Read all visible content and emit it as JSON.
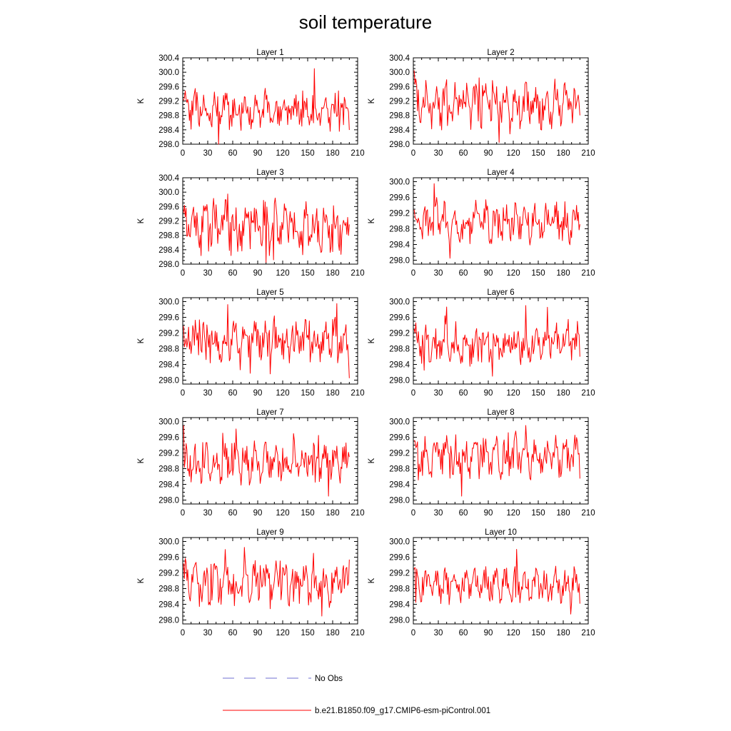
{
  "figure_title": "soil temperature",
  "colors": {
    "model": "#ff0000",
    "obs": "#6f6fd0",
    "axis": "#000000"
  },
  "legend": [
    {
      "label": "No Obs",
      "style": "dashed",
      "color": "#6f6fd0"
    },
    {
      "label": "b.e21.B1850.f09_g17.CMIP6-esm-piControl.001",
      "style": "solid",
      "color": "#ff0000"
    }
  ],
  "chart_data": [
    {
      "type": "line",
      "title": "Layer 1",
      "ylabel": "K",
      "xlim": [
        0,
        210
      ],
      "ylim": [
        298.0,
        300.4
      ],
      "xticks": [
        0,
        30,
        60,
        90,
        120,
        150,
        180,
        210
      ],
      "yticks": [
        298.0,
        298.4,
        298.8,
        299.2,
        299.6,
        300.0,
        300.4
      ],
      "ytick_labels": [
        "298.0",
        "298.4",
        "298.8",
        "299.2",
        "299.6",
        "300.0",
        "300.4"
      ],
      "series": [
        {
          "name": "b.e21.B1850.f09_g17.CMIP6-esm-piControl.001",
          "shape": "seasonal noisy series, x = 1..200",
          "ymin": 298.0,
          "ymax": 300.1,
          "seed": 11
        }
      ]
    },
    {
      "type": "line",
      "title": "Layer 2",
      "ylabel": "K",
      "xlim": [
        0,
        210
      ],
      "ylim": [
        298.0,
        300.4
      ],
      "xticks": [
        0,
        30,
        60,
        90,
        120,
        150,
        180,
        210
      ],
      "yticks": [
        298.0,
        298.4,
        298.8,
        299.2,
        299.6,
        300.0,
        300.4
      ],
      "ytick_labels": [
        "298.0",
        "298.4",
        "298.8",
        "299.2",
        "299.6",
        "300.0",
        "300.4"
      ],
      "series": [
        {
          "name": "b.e21.B1850.f09_g17.CMIP6-esm-piControl.001",
          "shape": "seasonal noisy series, x = 1..200",
          "ymin": 298.05,
          "ymax": 300.05,
          "seed": 12
        }
      ]
    },
    {
      "type": "line",
      "title": "Layer 3",
      "ylabel": "K",
      "xlim": [
        0,
        210
      ],
      "ylim": [
        298.0,
        300.4
      ],
      "xticks": [
        0,
        30,
        60,
        90,
        120,
        150,
        180,
        210
      ],
      "yticks": [
        298.0,
        298.4,
        298.8,
        299.2,
        299.6,
        300.0,
        300.4
      ],
      "ytick_labels": [
        "298.0",
        "298.4",
        "298.8",
        "299.2",
        "299.6",
        "300.0",
        "300.4"
      ],
      "series": [
        {
          "name": "b.e21.B1850.f09_g17.CMIP6-esm-piControl.001",
          "shape": "seasonal noisy series, x = 1..200",
          "ymin": 298.05,
          "ymax": 299.95,
          "seed": 13
        }
      ]
    },
    {
      "type": "line",
      "title": "Layer 4",
      "ylabel": "K",
      "xlim": [
        0,
        210
      ],
      "ylim": [
        297.9,
        300.1
      ],
      "xticks": [
        0,
        30,
        60,
        90,
        120,
        150,
        180,
        210
      ],
      "yticks": [
        298.0,
        298.4,
        298.8,
        299.2,
        299.6,
        300.0
      ],
      "ytick_labels": [
        "298.0",
        "298.4",
        "298.8",
        "299.2",
        "299.6",
        "300.0"
      ],
      "series": [
        {
          "name": "b.e21.B1850.f09_g17.CMIP6-esm-piControl.001",
          "shape": "seasonal noisy series, x = 1..200",
          "ymin": 298.05,
          "ymax": 299.95,
          "seed": 14
        }
      ]
    },
    {
      "type": "line",
      "title": "Layer 5",
      "ylabel": "K",
      "xlim": [
        0,
        210
      ],
      "ylim": [
        297.9,
        300.1
      ],
      "xticks": [
        0,
        30,
        60,
        90,
        120,
        150,
        180,
        210
      ],
      "yticks": [
        298.0,
        298.4,
        298.8,
        299.2,
        299.6,
        300.0
      ],
      "ytick_labels": [
        "298.0",
        "298.4",
        "298.8",
        "299.2",
        "299.6",
        "300.0"
      ],
      "series": [
        {
          "name": "b.e21.B1850.f09_g17.CMIP6-esm-piControl.001",
          "shape": "seasonal noisy series, x = 1..200",
          "ymin": 298.05,
          "ymax": 299.95,
          "seed": 15
        }
      ]
    },
    {
      "type": "line",
      "title": "Layer 6",
      "ylabel": "K",
      "xlim": [
        0,
        210
      ],
      "ylim": [
        297.9,
        300.1
      ],
      "xticks": [
        0,
        30,
        60,
        90,
        120,
        150,
        180,
        210
      ],
      "yticks": [
        298.0,
        298.4,
        298.8,
        299.2,
        299.6,
        300.0
      ],
      "ytick_labels": [
        "298.0",
        "298.4",
        "298.8",
        "299.2",
        "299.6",
        "300.0"
      ],
      "series": [
        {
          "name": "b.e21.B1850.f09_g17.CMIP6-esm-piControl.001",
          "shape": "seasonal noisy series, x = 1..200",
          "ymin": 298.1,
          "ymax": 299.9,
          "seed": 16
        }
      ]
    },
    {
      "type": "line",
      "title": "Layer 7",
      "ylabel": "K",
      "xlim": [
        0,
        210
      ],
      "ylim": [
        297.9,
        300.1
      ],
      "xticks": [
        0,
        30,
        60,
        90,
        120,
        150,
        180,
        210
      ],
      "yticks": [
        298.0,
        298.4,
        298.8,
        299.2,
        299.6,
        300.0
      ],
      "ytick_labels": [
        "298.0",
        "298.4",
        "298.8",
        "299.2",
        "299.6",
        "300.0"
      ],
      "series": [
        {
          "name": "b.e21.B1850.f09_g17.CMIP6-esm-piControl.001",
          "shape": "seasonal noisy series, x = 1..200",
          "ymin": 298.1,
          "ymax": 299.9,
          "seed": 17
        }
      ]
    },
    {
      "type": "line",
      "title": "Layer 8",
      "ylabel": "K",
      "xlim": [
        0,
        210
      ],
      "ylim": [
        297.9,
        300.1
      ],
      "xticks": [
        0,
        30,
        60,
        90,
        120,
        150,
        180,
        210
      ],
      "yticks": [
        298.0,
        298.4,
        298.8,
        299.2,
        299.6,
        300.0
      ],
      "ytick_labels": [
        "298.0",
        "298.4",
        "298.8",
        "299.2",
        "299.6",
        "300.0"
      ],
      "series": [
        {
          "name": "b.e21.B1850.f09_g17.CMIP6-esm-piControl.001",
          "shape": "seasonal noisy series, x = 1..200",
          "ymin": 298.1,
          "ymax": 299.9,
          "seed": 18
        }
      ]
    },
    {
      "type": "line",
      "title": "Layer 9",
      "ylabel": "K",
      "xlim": [
        0,
        210
      ],
      "ylim": [
        297.9,
        300.1
      ],
      "xticks": [
        0,
        30,
        60,
        90,
        120,
        150,
        180,
        210
      ],
      "yticks": [
        298.0,
        298.4,
        298.8,
        299.2,
        299.6,
        300.0
      ],
      "ytick_labels": [
        "298.0",
        "298.4",
        "298.8",
        "299.2",
        "299.6",
        "300.0"
      ],
      "series": [
        {
          "name": "b.e21.B1850.f09_g17.CMIP6-esm-piControl.001",
          "shape": "seasonal noisy series, x = 1..200",
          "ymin": 298.1,
          "ymax": 299.85,
          "seed": 19
        }
      ]
    },
    {
      "type": "line",
      "title": "Layer 10",
      "ylabel": "K",
      "xlim": [
        0,
        210
      ],
      "ylim": [
        297.9,
        300.1
      ],
      "xticks": [
        0,
        30,
        60,
        90,
        120,
        150,
        180,
        210
      ],
      "yticks": [
        298.0,
        298.4,
        298.8,
        299.2,
        299.6,
        300.0
      ],
      "ytick_labels": [
        "298.0",
        "298.4",
        "298.8",
        "299.2",
        "299.6",
        "300.0"
      ],
      "series": [
        {
          "name": "b.e21.B1850.f09_g17.CMIP6-esm-piControl.001",
          "shape": "seasonal noisy series, x = 1..200",
          "ymin": 298.15,
          "ymax": 299.8,
          "seed": 20
        }
      ]
    }
  ]
}
